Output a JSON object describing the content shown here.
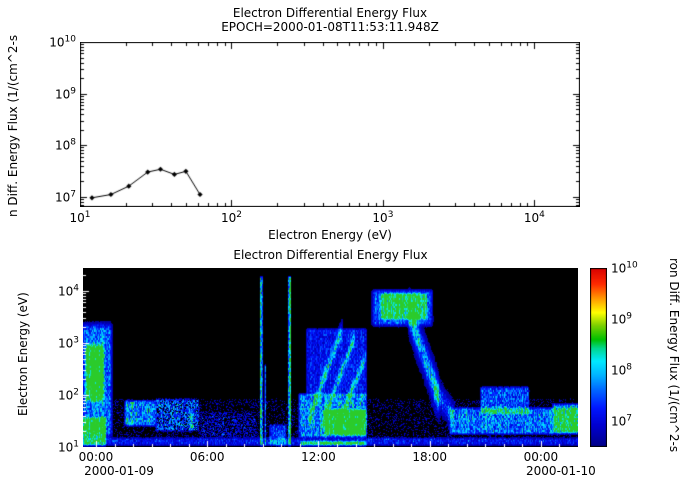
{
  "colors": {
    "background": "#ffffff",
    "foreground": "#000000",
    "spectrogram_background": "#000000"
  },
  "colorbar": {
    "label": "ron Diff. Energy Flux (1/(cm^2-s",
    "log_range": [
      6.5,
      10
    ],
    "tick_values": [
      10000000,
      100000000,
      1000000000,
      10000000000
    ],
    "stops": [
      [
        0,
        "#000086"
      ],
      [
        0.12,
        "#0000d0"
      ],
      [
        0.22,
        "#0018ff"
      ],
      [
        0.32,
        "#0068ff"
      ],
      [
        0.4,
        "#00b4ff"
      ],
      [
        0.48,
        "#00eaff"
      ],
      [
        0.55,
        "#00d890"
      ],
      [
        0.6,
        "#00c000"
      ],
      [
        0.68,
        "#7ed000"
      ],
      [
        0.75,
        "#ffff00"
      ],
      [
        0.83,
        "#ff9800"
      ],
      [
        0.91,
        "#ff2a00"
      ],
      [
        1,
        "#d80000"
      ]
    ]
  },
  "chart_data": [
    {
      "id": "energy-flux-line-plot",
      "type": "line",
      "title": "Electron Differential Energy Flux",
      "subtitle": "EPOCH=2000-01-08T11:53:11.948Z",
      "xlabel": "Electron Energy (eV)",
      "ylabel": "n Diff. Energy Flux (1/(cm^2-s",
      "x_scale": "log",
      "y_scale": "log",
      "xlim": [
        10,
        20000
      ],
      "ylim": [
        6300000,
        10000000000
      ],
      "x_ticks": [
        10,
        100,
        1000,
        10000
      ],
      "y_ticks": [
        10000000,
        100000000,
        1000000000,
        10000000000
      ],
      "x": [
        12,
        16,
        21,
        28,
        34,
        42,
        50,
        62
      ],
      "y": [
        9500000,
        11000000,
        16000000,
        30000000,
        34000000,
        27000000,
        31000000,
        11000000
      ]
    },
    {
      "id": "energy-flux-spectrogram",
      "type": "heatmap",
      "title": "Electron Differential Energy Flux",
      "ylabel": "Electron Energy (eV)",
      "y_scale": "log",
      "ylim": [
        10,
        27500
      ],
      "y_ticks": [
        10,
        100,
        1000,
        10000
      ],
      "time_axis": {
        "start_hours": -0.7,
        "end_hours": 26,
        "tick_hours": [
          0,
          6,
          12,
          18,
          24
        ],
        "tick_labels": [
          "00:00",
          "06:00",
          "12:00",
          "18:00",
          "00:00"
        ],
        "start_date_label": "2000-01-09",
        "end_date_label": "2000-01-10"
      },
      "features": [
        {
          "t": [
            -0.85,
            0.95
          ],
          "e": [
            1.1,
            3.45
          ],
          "v": 0.3,
          "st": 0.25,
          "se": 0.22,
          "n": 0.5
        },
        {
          "t": [
            -0.65,
            0.5
          ],
          "e": [
            1.8,
            3.05
          ],
          "v": 0.45,
          "st": 0.2,
          "se": 0.18,
          "n": 0.35
        },
        {
          "t": [
            -0.85,
            0.6
          ],
          "e": [
            1.0,
            1.6
          ],
          "v": 0.42,
          "n": 0.4
        },
        {
          "t": [
            1.5,
            3.3
          ],
          "e": [
            1.38,
            1.92
          ],
          "v": 0.36,
          "st": 0.15,
          "n": 0.55
        },
        {
          "t": [
            3.2,
            5.6
          ],
          "e": [
            1.28,
            1.95
          ],
          "v": 0.2,
          "n": 0.75,
          "sp": 0.25
        },
        {
          "t": [
            5.6,
            8.7
          ],
          "e": [
            1.15,
            1.7
          ],
          "v": 0.1,
          "n": 0.8,
          "sp": 0.55
        },
        {
          "t": [
            8.84,
            9.0
          ],
          "e": [
            1.0,
            4.3
          ],
          "v": 0.5,
          "st": 0.04,
          "n": 0.5
        },
        {
          "t": [
            9.08,
            9.2
          ],
          "e": [
            1.0,
            2.6
          ],
          "v": 0.26,
          "st": 0.04,
          "n": 0.5
        },
        {
          "t": [
            10.36,
            10.54
          ],
          "e": [
            1.0,
            4.3
          ],
          "v": 0.58,
          "st": 0.04,
          "n": 0.45
        },
        {
          "t": [
            10.9,
            14.65
          ],
          "e": [
            1.15,
            2.05
          ],
          "v": 0.34,
          "n": 0.5
        },
        {
          "t": [
            11.3,
            14.65
          ],
          "e": [
            1.95,
            3.3
          ],
          "v": 0.18,
          "n": 0.6
        },
        {
          "d": 1,
          "t": [
            11.5,
            13.2
          ],
          "es": 1.55,
          "ee": 3.2,
          "de": 0.14,
          "v": 0.3,
          "n": 0.5
        },
        {
          "d": 1,
          "t": [
            12.2,
            13.9
          ],
          "es": 1.45,
          "ee": 3.05,
          "de": 0.12,
          "v": 0.28,
          "n": 0.5
        },
        {
          "d": 1,
          "t": [
            13.0,
            14.5
          ],
          "es": 1.4,
          "ee": 2.7,
          "de": 0.12,
          "v": 0.26,
          "n": 0.5
        },
        {
          "t": [
            12.3,
            14.65
          ],
          "e": [
            1.2,
            1.75
          ],
          "v": 0.42,
          "n": 0.45
        },
        {
          "t": [
            10.95,
            14.65
          ],
          "e": [
            1.0,
            1.14
          ],
          "v": 0.5,
          "n": 0.3
        },
        {
          "t": [
            14.8,
            18.25
          ],
          "e": [
            3.28,
            4.06
          ],
          "v": 0.28,
          "st": 0.3,
          "se": 0.12,
          "n": 0.45
        },
        {
          "t": [
            15.3,
            17.9
          ],
          "e": [
            3.42,
            3.98
          ],
          "v": 0.36,
          "n": 0.4
        },
        {
          "d": 1,
          "t": [
            16.9,
            18.45
          ],
          "es": 3.55,
          "ee": 2.0,
          "de": 0.3,
          "v": 0.42,
          "n": 0.4
        },
        {
          "d": 1,
          "t": [
            18.3,
            19.25
          ],
          "es": 2.1,
          "ee": 1.6,
          "de": 0.22,
          "v": 0.26,
          "n": 0.5
        },
        {
          "t": [
            19.0,
            26.1
          ],
          "e": [
            1.22,
            1.78
          ],
          "v": 0.3,
          "st": 0.2,
          "n": 0.55
        },
        {
          "t": [
            20.7,
            23.4
          ],
          "e": [
            1.6,
            2.18
          ],
          "v": 0.26,
          "n": 0.6
        },
        {
          "t": [
            24.6,
            26.1
          ],
          "e": [
            1.25,
            1.85
          ],
          "v": 0.36,
          "n": 0.5
        },
        {
          "t": [
            -0.85,
            26.1
          ],
          "e": [
            1.0,
            1.2
          ],
          "v": 0.17,
          "n": 0.6
        },
        {
          "t": [
            -0.85,
            26.1
          ],
          "e": [
            1.05,
            1.95
          ],
          "v": 0.05,
          "n": 0.9,
          "sp": 0.75
        },
        {
          "t": [
            5.0,
            5.3
          ],
          "e": [
            1.3,
            1.75
          ],
          "v": 0.3,
          "n": 0.5
        },
        {
          "t": [
            9.3,
            10.3
          ],
          "e": [
            1.0,
            1.45
          ],
          "v": 0.2,
          "n": 0.6
        }
      ]
    }
  ]
}
